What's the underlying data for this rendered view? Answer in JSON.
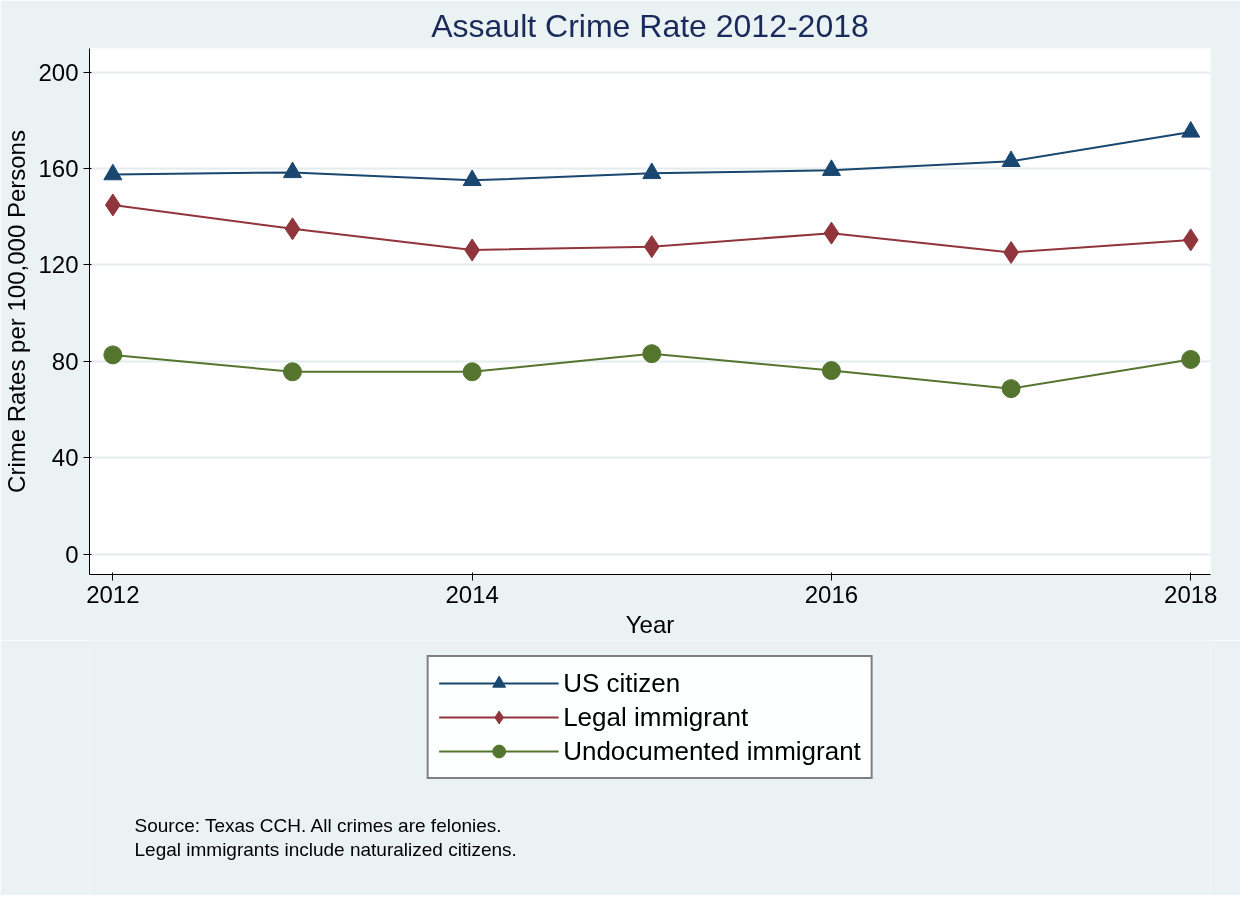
{
  "chart_data": {
    "type": "line",
    "title": "Assault Crime Rate 2012-2018",
    "xlabel": "Year",
    "ylabel": "Crime Rates per 100,000 Persons",
    "x": [
      2012,
      2013,
      2014,
      2015,
      2016,
      2017,
      2018
    ],
    "series": [
      {
        "name": "US citizen",
        "color": "#1a476f",
        "marker": "triangle",
        "values": [
          157.5,
          158.4,
          155.1,
          158,
          159.3,
          163,
          175.2
        ]
      },
      {
        "name": "Legal immigrant",
        "color": "#90353b",
        "marker": "diamond",
        "values": [
          144.9,
          135,
          126.2,
          127.6,
          133.2,
          125.2,
          130.4
        ]
      },
      {
        "name": "Undocumented immigrant",
        "color": "#55752f",
        "marker": "circle",
        "values": [
          82.7,
          75.7,
          75.7,
          83.2,
          76.2,
          68.7,
          80.8
        ]
      }
    ],
    "xlim": [
      2011.87,
      2018.11
    ],
    "xticks": [
      2012,
      2014,
      2016,
      2018
    ],
    "ylim": [
      -8.4,
      209.8
    ],
    "yticks": [
      0,
      40,
      80,
      120,
      160,
      200
    ],
    "grid": "y",
    "legend": "bottom",
    "line_style": "solid",
    "annotations": [
      "Source: Texas CCH. All crimes are felonies.",
      "Legal immigrants include naturalized citizens."
    ]
  }
}
